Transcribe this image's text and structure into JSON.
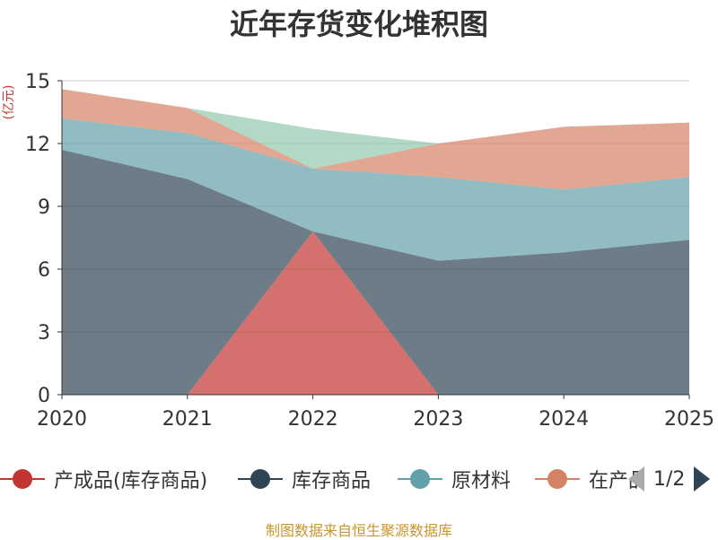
{
  "chart_data": {
    "type": "area",
    "stacked": true,
    "title": "近年存货变化堆积图",
    "ylabel": "(亿元)",
    "xlabel": "",
    "categories": [
      "2020",
      "2021",
      "2022",
      "2023",
      "2024",
      "2025"
    ],
    "ylim": [
      0,
      15
    ],
    "yticks": [
      0,
      3,
      6,
      9,
      12,
      15
    ],
    "grid": true,
    "series": [
      {
        "name": "产成品(库存商品)",
        "color": "#c23531",
        "values": [
          0,
          0,
          7.8,
          0,
          0,
          0
        ]
      },
      {
        "name": "库存商品",
        "color": "#2f4554",
        "values": [
          11.7,
          10.3,
          0,
          6.4,
          6.8,
          7.4
        ]
      },
      {
        "name": "原材料",
        "color": "#61a0a8",
        "values": [
          1.5,
          2.2,
          3.0,
          4.0,
          3.0,
          3.0
        ]
      },
      {
        "name": "在产品",
        "color": "#d48265",
        "values": [
          1.4,
          1.2,
          0,
          1.6,
          3.0,
          2.6
        ]
      },
      {
        "name": "",
        "color": "#91c7ae",
        "values": [
          0,
          0,
          1.9,
          0,
          0,
          0
        ]
      }
    ]
  },
  "legend": {
    "items": [
      "产成品(库存商品)",
      "库存商品",
      "原材料",
      "在产品"
    ],
    "page": "1/2"
  },
  "source": "制图数据来自恒生聚源数据库"
}
